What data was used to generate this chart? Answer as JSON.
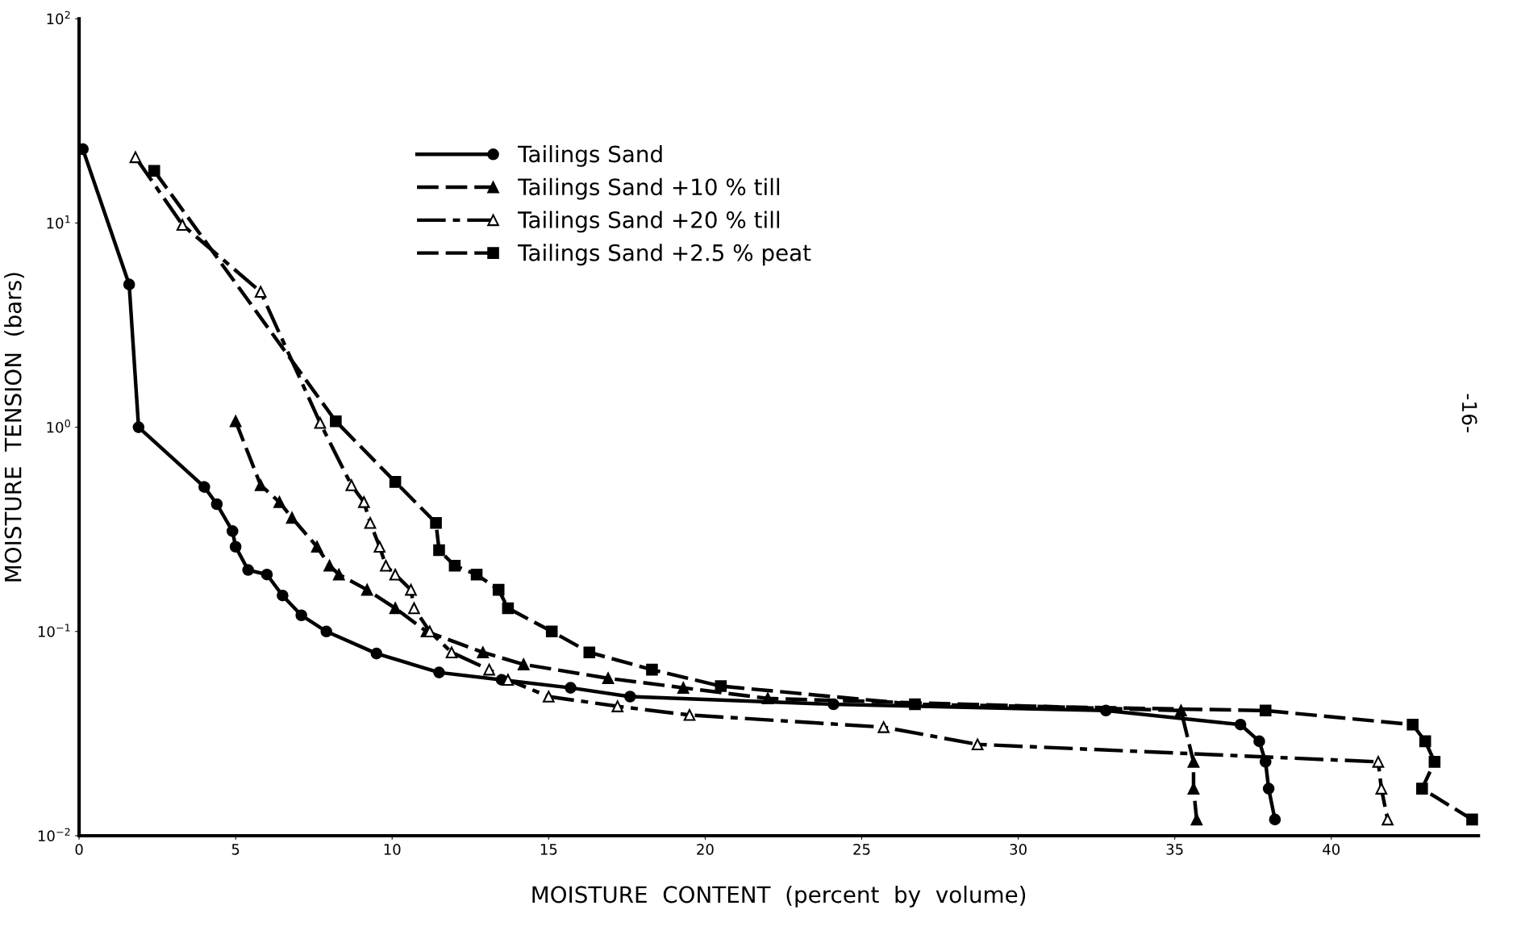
{
  "chart_data": {
    "type": "line",
    "xlabel": "MOISTURE  CONTENT  (percent  by  volume)",
    "ylabel": "MOISTURE  TENSION  (bars)",
    "log": "y",
    "xlim": [
      0,
      44.7
    ],
    "ylim": [
      0.01,
      100
    ],
    "xticks": [
      0,
      5,
      10,
      15,
      20,
      25,
      30,
      35,
      40
    ],
    "yticks": [
      {
        "value": 0.01,
        "label": "10$^{−2}$"
      },
      {
        "value": 0.1,
        "label": "10$^{−1}$"
      },
      {
        "value": 1,
        "label": "10$^{0}$"
      },
      {
        "value": 10,
        "label": "10$^{1}$"
      },
      {
        "value": 100,
        "label": "10$^{2}$"
      }
    ],
    "grid": false,
    "legend": "top",
    "annotations": [
      "-16-"
    ],
    "series": [
      {
        "name": "Tailings Sand",
        "color": "#000000",
        "marker": "circle",
        "line_style": "solid",
        "x": [
          0.12,
          1.6,
          1.9,
          4.0,
          4.4,
          4.9,
          5.0,
          5.4,
          6.0,
          6.5,
          7.1,
          7.9,
          9.5,
          11.5,
          13.5,
          15.7,
          17.6,
          24.1,
          32.8,
          37.1,
          37.7,
          37.9,
          38.0,
          38.2
        ],
        "values": [
          23,
          5.0,
          1.0,
          0.51,
          0.42,
          0.31,
          0.26,
          0.2,
          0.19,
          0.15,
          0.12,
          0.1,
          0.078,
          0.063,
          0.058,
          0.053,
          0.048,
          0.044,
          0.041,
          0.035,
          0.029,
          0.023,
          0.017,
          0.012
        ]
      },
      {
        "name": "Tailings Sand +10 % till",
        "color": "#000000",
        "marker": "triangle",
        "line_style": "dashed",
        "x": [
          5.0,
          5.8,
          6.4,
          6.8,
          7.6,
          8.0,
          8.3,
          9.2,
          10.1,
          11.1,
          12.9,
          14.2,
          16.9,
          19.3,
          22.0,
          35.2,
          35.6,
          35.6,
          35.7
        ],
        "values": [
          1.07,
          0.52,
          0.43,
          0.36,
          0.26,
          0.21,
          0.19,
          0.16,
          0.13,
          0.1,
          0.079,
          0.069,
          0.059,
          0.053,
          0.047,
          0.041,
          0.023,
          0.017,
          0.012
        ]
      },
      {
        "name": "Tailings Sand +20 % till",
        "color": "#000000",
        "marker": "triangle_open",
        "line_style": "dashdot",
        "x": [
          1.8,
          3.3,
          5.8,
          7.7,
          8.7,
          9.1,
          9.3,
          9.6,
          9.8,
          10.1,
          10.6,
          10.7,
          11.2,
          11.9,
          13.1,
          13.7,
          15.0,
          17.2,
          19.5,
          25.7,
          28.7,
          41.5,
          41.6,
          41.8
        ],
        "values": [
          21,
          9.8,
          4.6,
          1.05,
          0.52,
          0.43,
          0.34,
          0.26,
          0.21,
          0.19,
          0.16,
          0.13,
          0.1,
          0.079,
          0.065,
          0.058,
          0.048,
          0.043,
          0.039,
          0.034,
          0.028,
          0.023,
          0.017,
          0.012
        ]
      },
      {
        "name": "Tailings Sand +2.5 % peat",
        "color": "#000000",
        "marker": "square",
        "line_style": "dashed",
        "x": [
          2.4,
          8.2,
          10.1,
          11.4,
          11.5,
          12.0,
          12.7,
          13.4,
          13.7,
          15.1,
          16.3,
          18.3,
          20.5,
          26.7,
          37.9,
          42.6,
          43.0,
          43.3,
          42.9,
          44.5
        ],
        "values": [
          18,
          1.07,
          0.54,
          0.34,
          0.25,
          0.21,
          0.19,
          0.16,
          0.13,
          0.1,
          0.079,
          0.065,
          0.054,
          0.044,
          0.041,
          0.035,
          0.029,
          0.023,
          0.017,
          0.012
        ]
      }
    ]
  }
}
